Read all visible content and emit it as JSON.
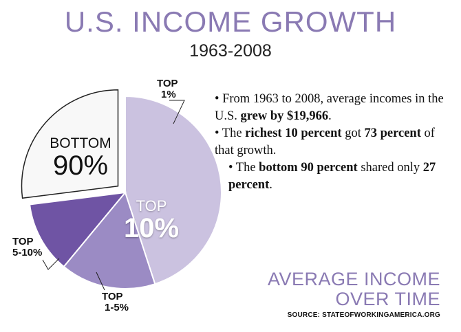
{
  "title": "U.S. INCOME GROWTH",
  "subtitle": "1963-2008",
  "chart_data": {
    "type": "pie",
    "slices": [
      {
        "label_line1": "TOP",
        "label_line2": "1%",
        "value": 45,
        "color": "#cbc2e0"
      },
      {
        "label_line1": "TOP",
        "label_line2": "1-5%",
        "value": 16,
        "color": "#9b8bc4"
      },
      {
        "label_line1": "TOP",
        "label_line2": "5-10%",
        "value": 12,
        "color": "#6f54a4"
      },
      {
        "label_line1": "BOTTOM",
        "label_line2": "90%",
        "value": 27,
        "color": "#f8f8f8"
      }
    ],
    "group_label": {
      "line1": "TOP",
      "line2": "10%"
    },
    "exploded": "BOTTOM 90%"
  },
  "bullets": [
    {
      "parts": [
        [
          "From 1963 to 2008, average incomes in the U.S. ",
          false
        ],
        [
          "grew by $19,966",
          true
        ],
        [
          ".",
          false
        ]
      ]
    },
    {
      "parts": [
        [
          "The ",
          false
        ],
        [
          "richest 10 percent",
          true
        ],
        [
          " got ",
          false
        ],
        [
          "73 percent",
          true
        ],
        [
          " of that growth.",
          false
        ]
      ]
    },
    {
      "parts": [
        [
          "The ",
          false
        ],
        [
          "bottom 90 percent",
          true
        ],
        [
          " shared only ",
          false
        ],
        [
          "27 percent",
          true
        ],
        [
          ".",
          false
        ]
      ]
    }
  ],
  "footer": {
    "line1": "AVERAGE INCOME",
    "line2": "OVER TIME",
    "source": "SOURCE: STATEOFWORKINGAMERICA.ORG"
  }
}
